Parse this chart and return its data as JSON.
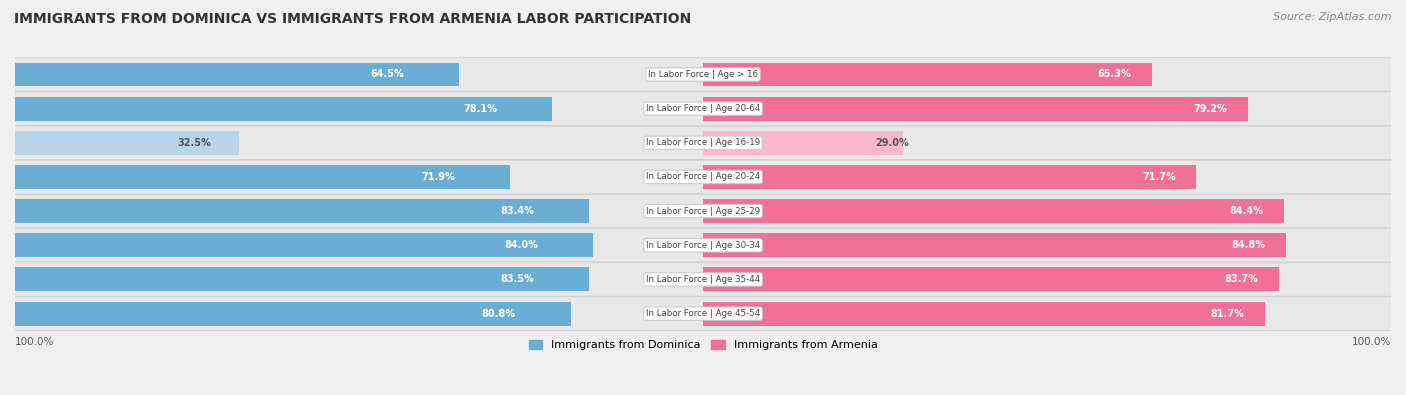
{
  "title": "IMMIGRANTS FROM DOMINICA VS IMMIGRANTS FROM ARMENIA LABOR PARTICIPATION",
  "source": "Source: ZipAtlas.com",
  "categories": [
    "In Labor Force | Age > 16",
    "In Labor Force | Age 20-64",
    "In Labor Force | Age 16-19",
    "In Labor Force | Age 20-24",
    "In Labor Force | Age 25-29",
    "In Labor Force | Age 30-34",
    "In Labor Force | Age 35-44",
    "In Labor Force | Age 45-54"
  ],
  "dominica_values": [
    64.5,
    78.1,
    32.5,
    71.9,
    83.4,
    84.0,
    83.5,
    80.8
  ],
  "armenia_values": [
    65.3,
    79.2,
    29.0,
    71.7,
    84.4,
    84.8,
    83.7,
    81.7
  ],
  "dominica_labels": [
    "64.5%",
    "78.1%",
    "32.5%",
    "71.9%",
    "83.4%",
    "84.0%",
    "83.5%",
    "80.8%"
  ],
  "armenia_labels": [
    "65.3%",
    "79.2%",
    "29.0%",
    "71.7%",
    "84.4%",
    "84.8%",
    "83.7%",
    "81.7%"
  ],
  "dominica_color": "#6aaed6",
  "armenia_color": "#f07097",
  "dominica_color_light": "#b8d4eb",
  "armenia_color_light": "#f9b8cc",
  "dominica_legend": "Immigrants from Dominica",
  "armenia_legend": "Immigrants from Armenia",
  "max_value": 100.0,
  "background_color": "#f0f0f0",
  "row_bg_color": "#e0e0e0",
  "axis_label_left": "100.0%",
  "axis_label_right": "100.0%"
}
